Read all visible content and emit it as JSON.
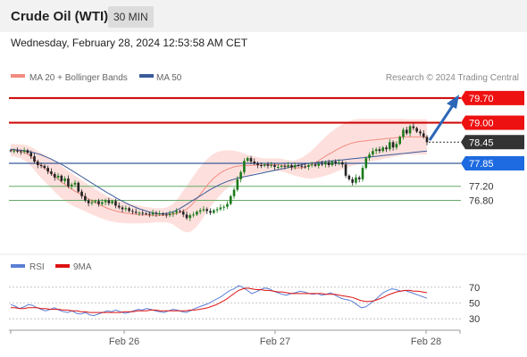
{
  "header": {
    "title": "Crude Oil (WTI)",
    "timeframe": "30 MIN"
  },
  "datetime": "Wednesday, February 28, 2024 12:53:58 AM CET",
  "legend": {
    "items": [
      {
        "label": "MA 20 + Bollinger Bands",
        "color": "#f28b82"
      },
      {
        "label": "MA 50",
        "color": "#3a5a9a"
      }
    ],
    "credit": "Research © 2024 Trading Central"
  },
  "rsi_legend": [
    {
      "label": "RSI",
      "color": "#5b7fd6"
    },
    {
      "label": "9MA",
      "color": "#dd1111"
    }
  ],
  "colors": {
    "up": "#1a7a1a",
    "down": "#222222",
    "resistance": "#cc0000",
    "support": "#66aa66",
    "arrow": "#2c66b8"
  },
  "chart_data": {
    "type": "candlestick",
    "x_labels": [
      "Feb 26",
      "Feb 27",
      "Feb 28"
    ],
    "ylim": [
      75.6,
      80.0
    ],
    "price_levels": [
      {
        "value": 79.7,
        "label": "79.70",
        "style": "resistance",
        "badge": "red"
      },
      {
        "value": 79.0,
        "label": "79.00",
        "style": "resistance",
        "badge": "red"
      },
      {
        "value": 78.45,
        "label": "78.45",
        "style": "last",
        "badge": "dark"
      },
      {
        "value": 77.85,
        "label": "77.85",
        "style": "pivot",
        "badge": "blue"
      },
      {
        "value": 77.2,
        "label": "77.20",
        "style": "support",
        "badge": "none"
      },
      {
        "value": 76.8,
        "label": "76.80",
        "style": "support",
        "badge": "none"
      }
    ],
    "closes": [
      78.2,
      78.21,
      78.19,
      78.18,
      78.22,
      78.15,
      78.05,
      77.9,
      77.8,
      77.78,
      77.72,
      77.62,
      77.55,
      77.45,
      77.5,
      77.35,
      77.42,
      77.2,
      77.25,
      77.3,
      77.05,
      76.92,
      76.8,
      76.72,
      76.75,
      76.78,
      76.7,
      76.75,
      76.8,
      76.72,
      76.78,
      76.65,
      76.6,
      76.55,
      76.58,
      76.5,
      76.48,
      76.45,
      76.45,
      76.43,
      76.42,
      76.4,
      76.45,
      76.42,
      76.43,
      76.4,
      76.38,
      76.42,
      76.45,
      76.5,
      76.48,
      76.4,
      76.3,
      76.38,
      76.4,
      76.48,
      76.52,
      76.55,
      76.5,
      76.45,
      76.52,
      76.55,
      76.6,
      76.62,
      76.7,
      76.92,
      77.1,
      77.4,
      77.6,
      77.92,
      78.0,
      77.9,
      77.85,
      77.8,
      77.78,
      77.82,
      77.78,
      77.8,
      77.75,
      77.75,
      77.78,
      77.76,
      77.8,
      77.74,
      77.8,
      77.78,
      77.76,
      77.75,
      77.8,
      77.82,
      77.78,
      77.84,
      77.82,
      77.88,
      77.8,
      77.9,
      77.85,
      77.88,
      77.82,
      77.5,
      77.4,
      77.3,
      77.45,
      77.4,
      77.72,
      78.0,
      78.1,
      78.2,
      78.25,
      78.2,
      78.3,
      78.25,
      78.45,
      78.3,
      78.4,
      78.6,
      78.8,
      78.7,
      78.9,
      78.85,
      78.75,
      78.7,
      78.6,
      78.45
    ],
    "ma20": [
      78.22,
      78.22,
      78.21,
      78.19,
      78.16,
      78.11,
      78.04,
      77.96,
      77.87,
      77.79,
      77.71,
      77.63,
      77.56,
      77.48,
      77.4,
      77.32,
      77.25,
      77.18,
      77.12,
      77.06,
      77.01,
      76.95,
      76.9,
      76.84,
      76.79,
      76.74,
      76.69,
      76.65,
      76.6,
      76.56,
      76.53,
      76.5,
      76.48,
      76.46,
      76.44,
      76.43,
      76.42,
      76.41,
      76.4,
      76.39,
      76.39,
      76.38,
      76.38,
      76.38,
      76.38,
      76.38,
      76.39,
      76.4,
      76.41,
      76.43,
      76.46,
      76.5,
      76.55,
      76.63,
      76.73,
      76.85,
      76.97,
      77.1,
      77.22,
      77.33,
      77.43,
      77.51,
      77.58,
      77.64,
      77.68,
      77.72,
      77.75,
      77.77,
      77.78,
      77.79,
      77.79,
      77.79,
      77.8,
      77.8,
      77.8,
      77.8,
      77.81,
      77.81,
      77.81,
      77.81,
      77.8,
      77.78,
      77.75,
      77.73,
      77.72,
      77.72,
      77.73,
      77.75,
      77.78,
      77.82,
      77.87,
      77.93,
      77.99,
      78.05,
      78.11,
      78.16,
      78.22,
      78.27,
      78.32,
      78.36,
      78.4,
      78.43,
      78.45,
      78.47,
      78.48,
      78.49,
      78.5,
      78.51,
      78.52,
      78.53,
      78.54,
      78.55,
      78.56,
      78.57,
      78.58,
      78.59,
      78.6,
      78.6,
      78.6,
      78.6,
      78.6,
      78.6,
      78.6,
      78.6
    ],
    "ma50": [
      78.25,
      78.24,
      78.23,
      78.22,
      78.21,
      78.19,
      78.17,
      78.15,
      78.12,
      78.09,
      78.05,
      78.01,
      77.97,
      77.92,
      77.87,
      77.82,
      77.77,
      77.71,
      77.65,
      77.59,
      77.53,
      77.47,
      77.41,
      77.35,
      77.29,
      77.23,
      77.17,
      77.11,
      77.05,
      76.99,
      76.94,
      76.88,
      76.83,
      76.78,
      76.73,
      76.68,
      76.64,
      76.6,
      76.56,
      76.53,
      76.5,
      76.47,
      76.45,
      76.43,
      76.42,
      76.42,
      76.43,
      76.45,
      76.48,
      76.52,
      76.57,
      76.63,
      76.69,
      76.75,
      76.81,
      76.87,
      76.93,
      76.99,
      77.05,
      77.11,
      77.16,
      77.21,
      77.26,
      77.3,
      77.34,
      77.37,
      77.4,
      77.43,
      77.45,
      77.47,
      77.49,
      77.51,
      77.53,
      77.55,
      77.57,
      77.59,
      77.61,
      77.63,
      77.65,
      77.67,
      77.69,
      77.71,
      77.73,
      77.75,
      77.77,
      77.79,
      77.81,
      77.83,
      77.85,
      77.86,
      77.87,
      77.88,
      77.89,
      77.9,
      77.91,
      77.92,
      77.93,
      77.94,
      77.95,
      77.96,
      77.97,
      77.98,
      77.99,
      78.0,
      78.01,
      78.02,
      78.03,
      78.04,
      78.05,
      78.06,
      78.07,
      78.08,
      78.09,
      78.1,
      78.11,
      78.12,
      78.13,
      78.14,
      78.15,
      78.16,
      78.17,
      78.18,
      78.19,
      78.2
    ],
    "bb_width": [
      0.18,
      0.18,
      0.19,
      0.2,
      0.22,
      0.24,
      0.27,
      0.3,
      0.33,
      0.36,
      0.38,
      0.4,
      0.42,
      0.44,
      0.45,
      0.46,
      0.46,
      0.46,
      0.45,
      0.44,
      0.43,
      0.42,
      0.41,
      0.4,
      0.39,
      0.38,
      0.37,
      0.36,
      0.35,
      0.34,
      0.33,
      0.32,
      0.31,
      0.3,
      0.29,
      0.28,
      0.27,
      0.26,
      0.25,
      0.24,
      0.23,
      0.22,
      0.21,
      0.2,
      0.2,
      0.2,
      0.21,
      0.24,
      0.3,
      0.38,
      0.48,
      0.58,
      0.66,
      0.72,
      0.76,
      0.78,
      0.78,
      0.77,
      0.75,
      0.72,
      0.69,
      0.66,
      0.62,
      0.58,
      0.54,
      0.5,
      0.46,
      0.42,
      0.38,
      0.34,
      0.3,
      0.27,
      0.24,
      0.22,
      0.2,
      0.19,
      0.18,
      0.18,
      0.18,
      0.18,
      0.18,
      0.18,
      0.19,
      0.2,
      0.22,
      0.25,
      0.28,
      0.32,
      0.36,
      0.4,
      0.44,
      0.48,
      0.52,
      0.55,
      0.58,
      0.6,
      0.62,
      0.63,
      0.64,
      0.65,
      0.65,
      0.65,
      0.65,
      0.64,
      0.63,
      0.62,
      0.61,
      0.6,
      0.59,
      0.58,
      0.57,
      0.56,
      0.55,
      0.54,
      0.53,
      0.52,
      0.51,
      0.5,
      0.5,
      0.5,
      0.5,
      0.5,
      0.5,
      0.5
    ],
    "rsi": {
      "ylim": [
        20,
        80
      ],
      "ticks": [
        70,
        50,
        30
      ],
      "values": [
        48,
        46,
        43,
        45,
        48,
        47,
        44,
        42,
        40,
        42,
        44,
        41,
        39,
        38,
        40,
        37,
        36,
        38,
        35,
        34,
        36,
        38,
        40,
        39,
        41,
        39,
        37,
        38,
        40,
        42,
        41,
        43,
        42,
        40,
        39,
        38,
        40,
        42,
        41,
        39,
        38,
        40,
        43,
        45,
        47,
        49,
        52,
        55,
        58,
        62,
        66,
        68,
        72,
        70,
        66,
        62,
        64,
        67,
        69,
        68,
        65,
        63,
        61,
        60,
        62,
        63,
        65,
        64,
        62,
        61,
        62,
        60,
        61,
        63,
        60,
        57,
        55,
        54,
        52,
        48,
        44,
        45,
        49,
        53,
        58,
        63,
        66,
        68,
        67,
        65,
        66,
        64,
        62,
        60,
        58,
        56
      ],
      "ma9": [
        44,
        44,
        43,
        43,
        44,
        44,
        44,
        43,
        43,
        42,
        42,
        42,
        41,
        41,
        40,
        40,
        39,
        39,
        38,
        38,
        38,
        38,
        38,
        38,
        38,
        38,
        39,
        39,
        39,
        40,
        40,
        40,
        41,
        41,
        40,
        40,
        40,
        40,
        40,
        40,
        40,
        41,
        41,
        42,
        43,
        44,
        46,
        48,
        51,
        54,
        58,
        62,
        66,
        68,
        69,
        68,
        67,
        67,
        66,
        66,
        65,
        64,
        64,
        63,
        62,
        62,
        62,
        62,
        62,
        62,
        62,
        62,
        61,
        61,
        61,
        60,
        59,
        58,
        57,
        55,
        53,
        52,
        52,
        53,
        55,
        57,
        60,
        62,
        64,
        65,
        66,
        66,
        65,
        65,
        64,
        63
      ]
    }
  }
}
